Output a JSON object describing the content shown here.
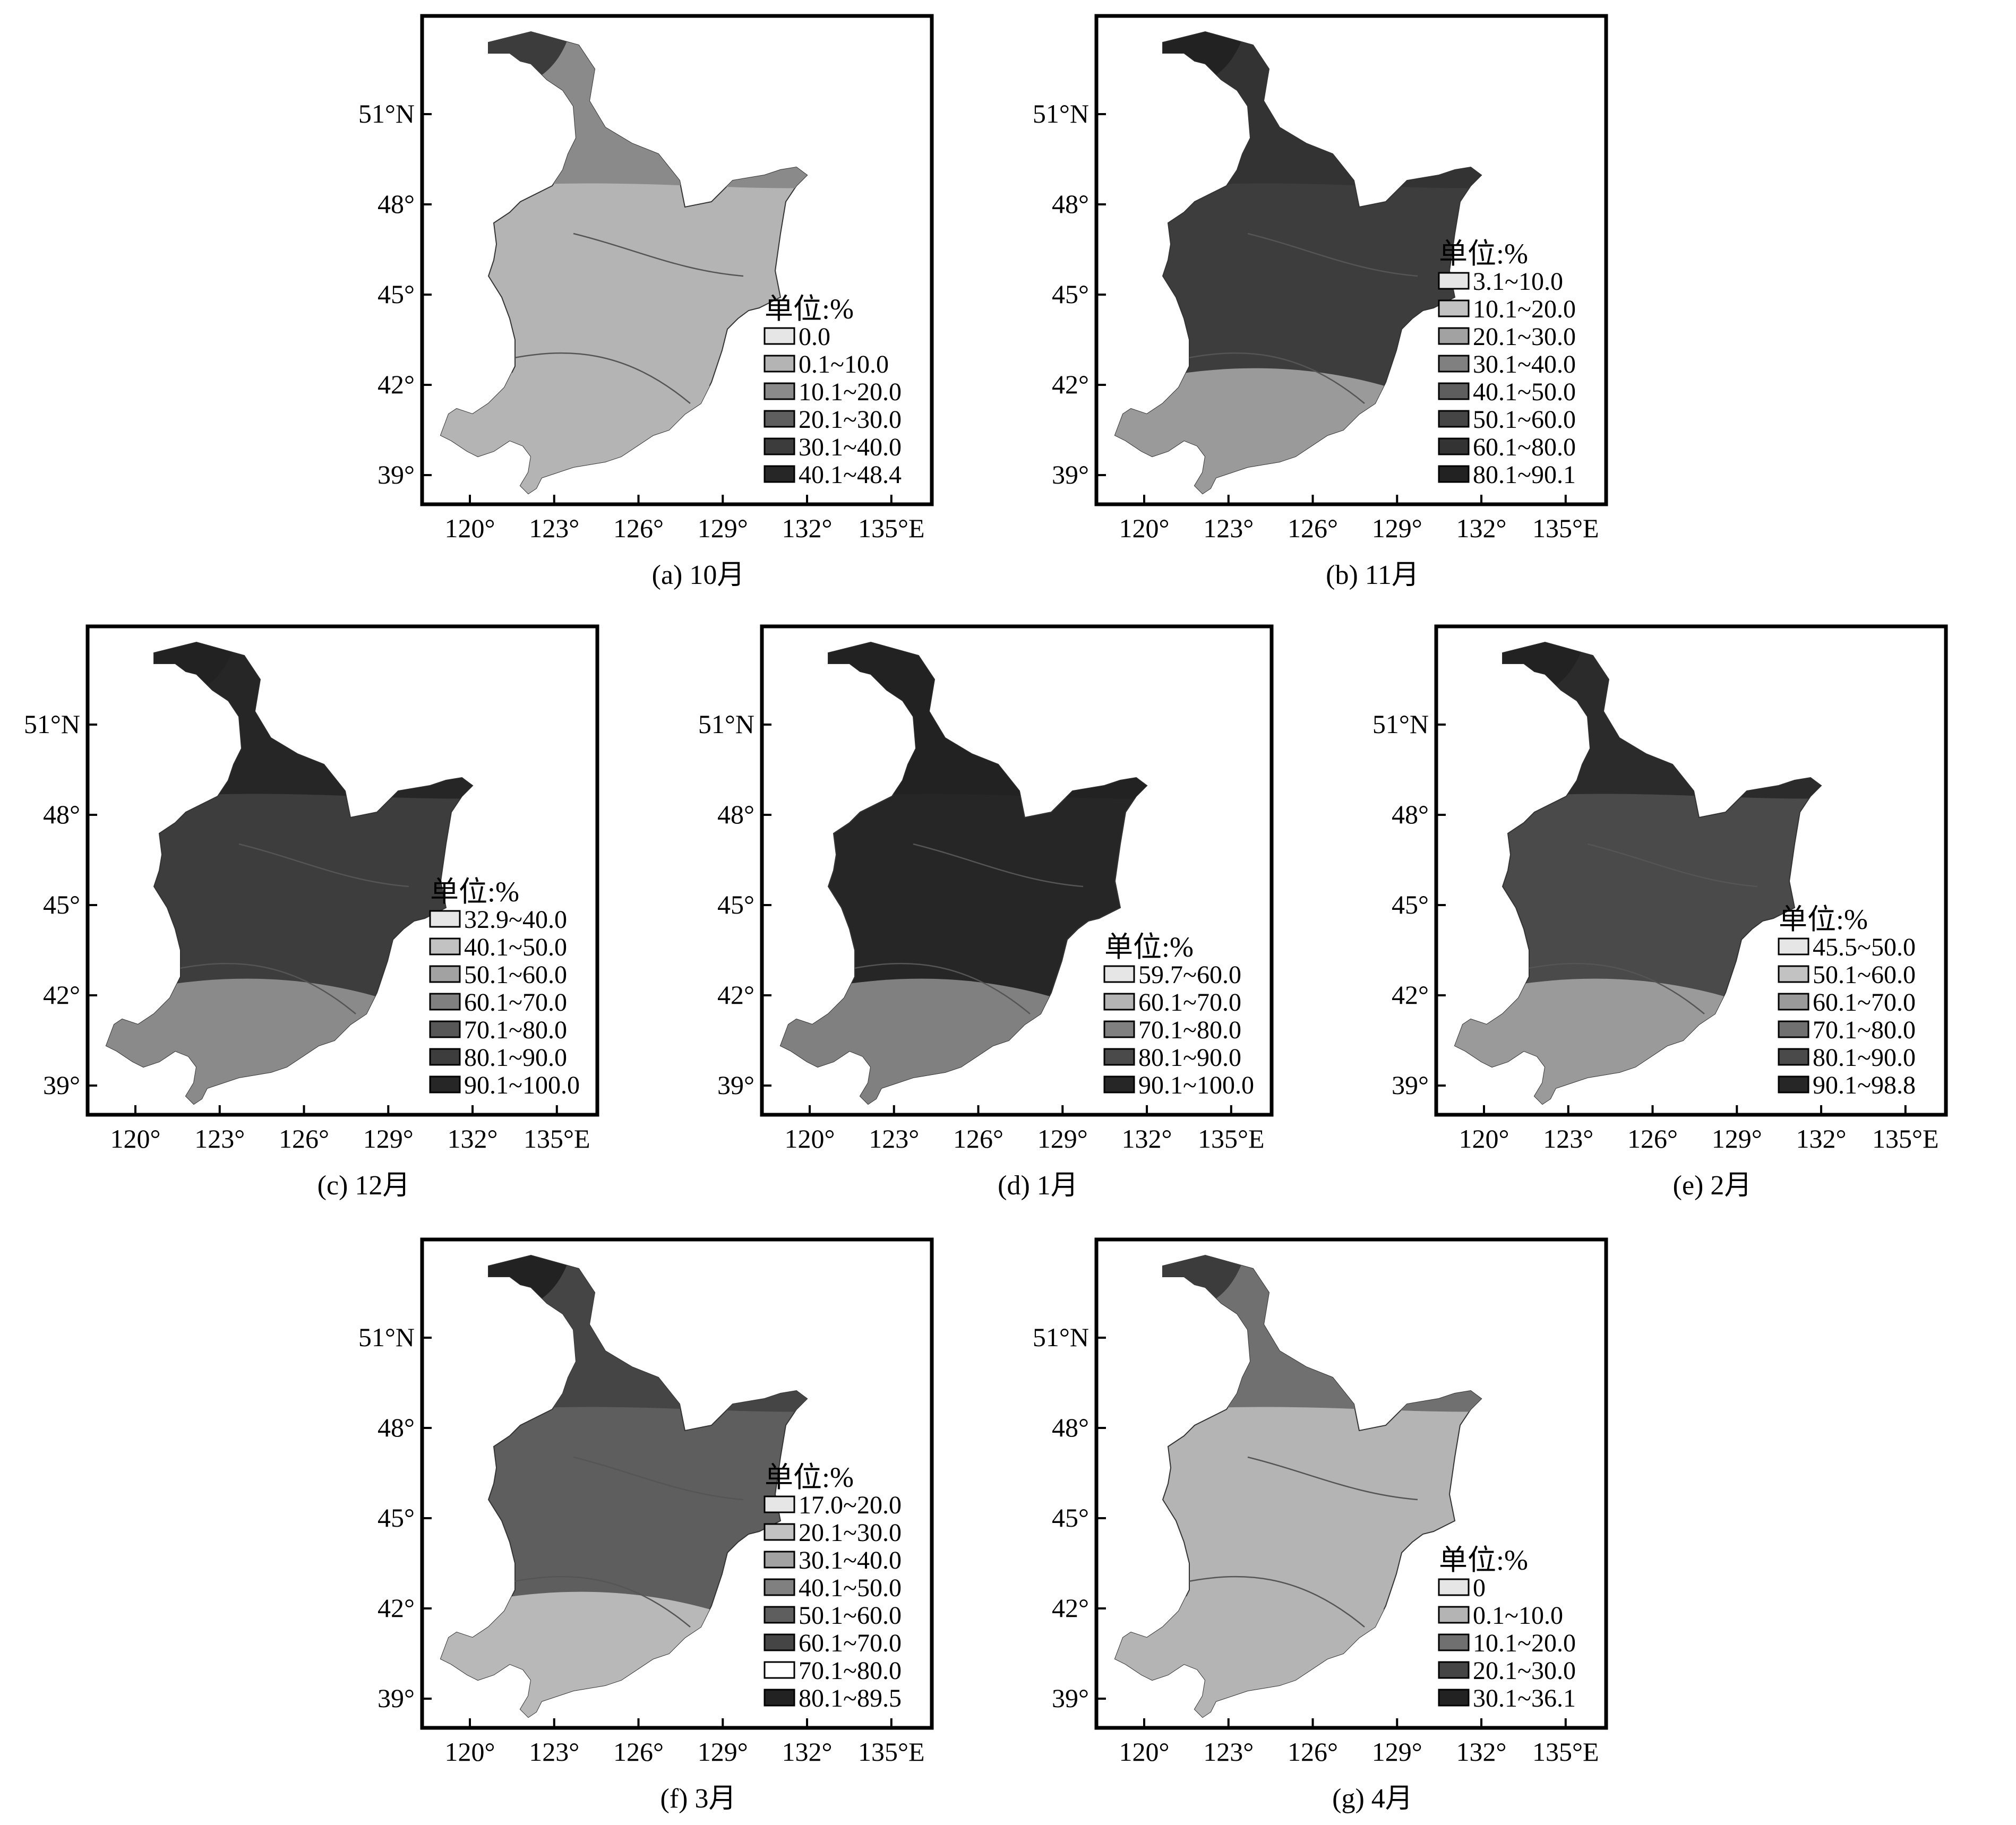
{
  "figure": {
    "axes": {
      "x_ticks": [
        "120°",
        "123°",
        "126°",
        "129°",
        "132°",
        "135°E"
      ],
      "y_ticks": [
        "51°N",
        "48°",
        "45°",
        "42°",
        "39°"
      ]
    },
    "legend_title": "单位:%"
  },
  "panels": [
    {
      "id": "a",
      "caption": "(a) 10月",
      "legend": [
        "0.0",
        "0.1~10.0",
        "10.1~20.0",
        "20.1~30.0",
        "30.1~40.0",
        "40.1~48.4"
      ],
      "legend_colors": [
        "#e6e6e6",
        "#b4b4b4",
        "#8a8a8a",
        "#5e5e5e",
        "#3c3c3c",
        "#262626"
      ],
      "base_color": "#b4b4b4",
      "north_color": "#8a8a8a",
      "tip_color": "#3c3c3c",
      "south_color": "#b4b4b4"
    },
    {
      "id": "b",
      "caption": "(b) 11月",
      "legend": [
        "3.1~10.0",
        "10.1~20.0",
        "20.1~30.0",
        "30.1~40.0",
        "40.1~50.0",
        "50.1~60.0",
        "60.1~80.0",
        "80.1~90.1"
      ],
      "legend_colors": [
        "#e6e6e6",
        "#c2c2c2",
        "#a2a2a2",
        "#808080",
        "#5e5e5e",
        "#454545",
        "#333333",
        "#222222"
      ],
      "base_color": "#3d3d3d",
      "north_color": "#333333",
      "tip_color": "#222222",
      "south_color": "#9a9a9a"
    },
    {
      "id": "c",
      "caption": "(c) 12月",
      "legend": [
        "32.9~40.0",
        "40.1~50.0",
        "50.1~60.0",
        "60.1~70.0",
        "70.1~80.0",
        "80.1~90.0",
        "90.1~100.0"
      ],
      "legend_colors": [
        "#e6e6e6",
        "#c2c2c2",
        "#a2a2a2",
        "#808080",
        "#575757",
        "#3d3d3d",
        "#262626"
      ],
      "base_color": "#3d3d3d",
      "north_color": "#262626",
      "tip_color": "#222222",
      "south_color": "#8a8a8a"
    },
    {
      "id": "d",
      "caption": "(d) 1月",
      "legend": [
        "59.7~60.0",
        "60.1~70.0",
        "70.1~80.0",
        "80.1~90.0",
        "90.1~100.0"
      ],
      "legend_colors": [
        "#e6e6e6",
        "#b4b4b4",
        "#808080",
        "#4a4a4a",
        "#262626"
      ],
      "base_color": "#262626",
      "north_color": "#222222",
      "tip_color": "#222222",
      "south_color": "#808080"
    },
    {
      "id": "e",
      "caption": "(e) 2月",
      "legend": [
        "45.5~50.0",
        "50.1~60.0",
        "60.1~70.0",
        "70.1~80.0",
        "80.1~90.0",
        "90.1~98.8"
      ],
      "legend_colors": [
        "#e6e6e6",
        "#c2c2c2",
        "#9a9a9a",
        "#707070",
        "#4a4a4a",
        "#262626"
      ],
      "base_color": "#4a4a4a",
      "north_color": "#2b2b2b",
      "tip_color": "#222222",
      "south_color": "#9a9a9a"
    },
    {
      "id": "f",
      "caption": "(f) 3月",
      "legend": [
        "17.0~20.0",
        "20.1~30.0",
        "30.1~40.0",
        "40.1~50.0",
        "50.1~60.0",
        "60.1~70.0",
        "70.1~80.0",
        "80.1~89.5"
      ],
      "legend_colors": [
        "#e6e6e6",
        "#c2c2c2",
        "#a2a2a2",
        "#808080",
        "#5e5e5e",
        "#454545",
        "#ffffff",
        "#222222"
      ],
      "base_color": "#5e5e5e",
      "north_color": "#454545",
      "tip_color": "#222222",
      "south_color": "#b8b8b8"
    },
    {
      "id": "g",
      "caption": "(g) 4月",
      "legend": [
        "0",
        "0.1~10.0",
        "10.1~20.0",
        "20.1~30.0",
        "30.1~36.1"
      ],
      "legend_colors": [
        "#e6e6e6",
        "#b4b4b4",
        "#707070",
        "#454545",
        "#222222"
      ],
      "base_color": "#b4b4b4",
      "north_color": "#707070",
      "tip_color": "#3c3c3c",
      "south_color": "#b4b4b4"
    }
  ]
}
